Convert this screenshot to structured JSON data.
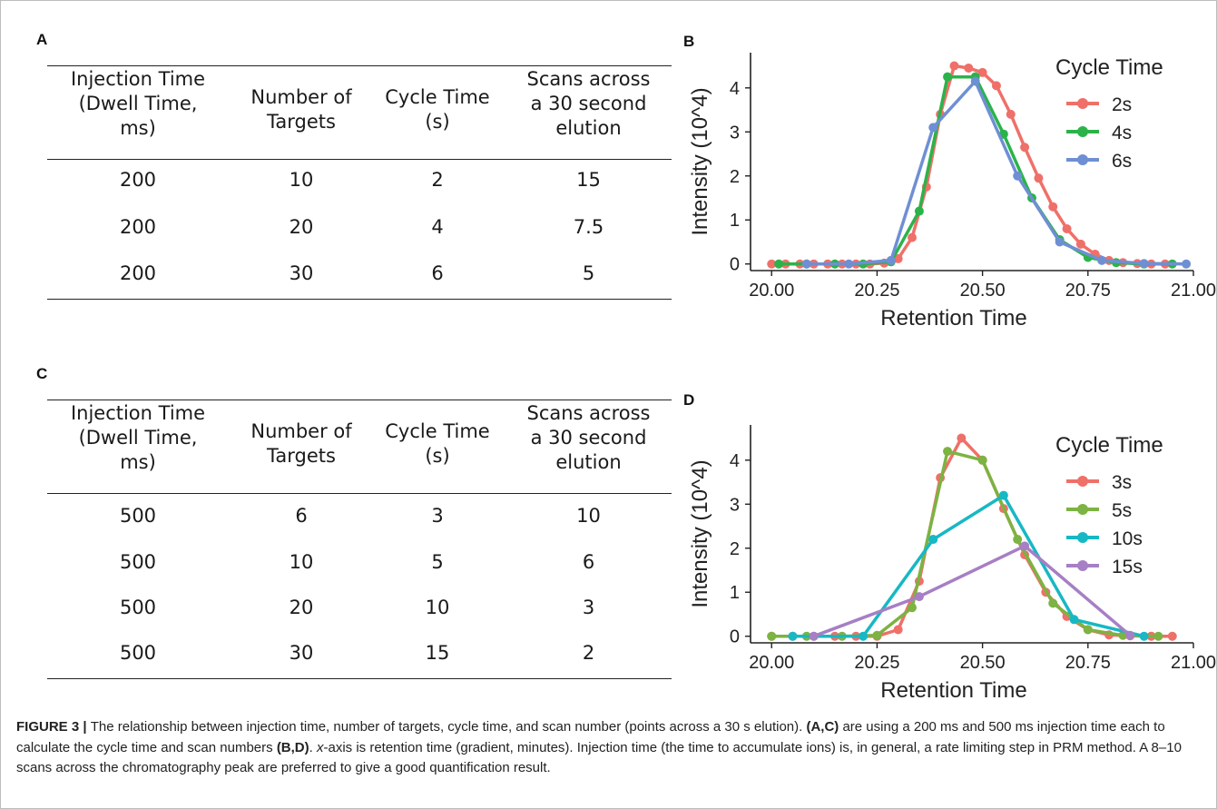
{
  "panels": {
    "A": {
      "letter": "A",
      "headers": [
        "Injection Time\n(Dwell Time,\nms)",
        "Number of\nTargets",
        "Cycle Time\n(s)",
        "Scans across\na 30 second\nelution"
      ],
      "rows": [
        [
          "200",
          "10",
          "2",
          "15"
        ],
        [
          "200",
          "20",
          "4",
          "7.5"
        ],
        [
          "200",
          "30",
          "6",
          "5"
        ]
      ]
    },
    "B": {
      "letter": "B"
    },
    "C": {
      "letter": "C",
      "headers": [
        "Injection Time\n(Dwell Time,\nms)",
        "Number of\nTargets",
        "Cycle Time\n(s)",
        "Scans across\na 30 second\nelution"
      ],
      "rows": [
        [
          "500",
          "6",
          "3",
          "10"
        ],
        [
          "500",
          "10",
          "5",
          "6"
        ],
        [
          "500",
          "20",
          "10",
          "3"
        ],
        [
          "500",
          "30",
          "15",
          "2"
        ]
      ]
    },
    "D": {
      "letter": "D"
    }
  },
  "chart_data": [
    {
      "panel": "B",
      "type": "line",
      "xlabel": "Retention Time",
      "ylabel": "Intensity (10^4)",
      "xlim": [
        19.95,
        21.0
      ],
      "ylim": [
        -0.15,
        4.8
      ],
      "xticks": [
        "20.00",
        "20.25",
        "20.50",
        "20.75",
        "21.00"
      ],
      "xtick_values": [
        20.0,
        20.25,
        20.5,
        20.75,
        21.0
      ],
      "yticks": [
        "0",
        "1",
        "2",
        "3",
        "4"
      ],
      "ytick_values": [
        0,
        1,
        2,
        3,
        4
      ],
      "legend_title": "Cycle Time",
      "legend_position": "top-right",
      "series": [
        {
          "name": "2s",
          "color": "#ef7069",
          "x": [
            20.0,
            20.033,
            20.067,
            20.1,
            20.133,
            20.167,
            20.2,
            20.233,
            20.267,
            20.3,
            20.333,
            20.367,
            20.4,
            20.433,
            20.467,
            20.5,
            20.533,
            20.567,
            20.6,
            20.633,
            20.667,
            20.7,
            20.733,
            20.767,
            20.8,
            20.833,
            20.867,
            20.9,
            20.933
          ],
          "y": [
            0,
            0,
            0,
            0,
            0,
            0,
            0,
            0,
            0.02,
            0.12,
            0.6,
            1.75,
            3.4,
            4.5,
            4.45,
            4.35,
            4.05,
            3.4,
            2.65,
            1.95,
            1.3,
            0.8,
            0.45,
            0.22,
            0.08,
            0.03,
            0.01,
            0,
            0
          ]
        },
        {
          "name": "4s",
          "color": "#2bb34a",
          "x": [
            20.017,
            20.083,
            20.15,
            20.217,
            20.283,
            20.35,
            20.417,
            20.483,
            20.55,
            20.617,
            20.683,
            20.75,
            20.817,
            20.883,
            20.95
          ],
          "y": [
            0,
            0,
            0,
            0,
            0.05,
            1.2,
            4.25,
            4.25,
            2.95,
            1.5,
            0.55,
            0.15,
            0.03,
            0,
            0
          ]
        },
        {
          "name": "6s",
          "color": "#6f8fd4",
          "x": [
            20.083,
            20.183,
            20.283,
            20.383,
            20.483,
            20.583,
            20.683,
            20.783,
            20.883,
            20.983
          ],
          "y": [
            0,
            0,
            0.08,
            3.1,
            4.15,
            2.0,
            0.5,
            0.08,
            0.01,
            0
          ]
        }
      ]
    },
    {
      "panel": "D",
      "type": "line",
      "xlabel": "Retention Time",
      "ylabel": "Intensity (10^4)",
      "xlim": [
        19.95,
        21.0
      ],
      "ylim": [
        -0.15,
        4.8
      ],
      "xticks": [
        "20.00",
        "20.25",
        "20.50",
        "20.75",
        "21.00"
      ],
      "xtick_values": [
        20.0,
        20.25,
        20.5,
        20.75,
        21.0
      ],
      "yticks": [
        "0",
        "1",
        "2",
        "3",
        "4"
      ],
      "ytick_values": [
        0,
        1,
        2,
        3,
        4
      ],
      "legend_title": "Cycle Time",
      "legend_position": "top-right",
      "series": [
        {
          "name": "3s",
          "color": "#ef7069",
          "x": [
            20.0,
            20.05,
            20.1,
            20.15,
            20.2,
            20.25,
            20.3,
            20.35,
            20.4,
            20.45,
            20.5,
            20.55,
            20.6,
            20.65,
            20.7,
            20.75,
            20.8,
            20.85,
            20.9,
            20.95
          ],
          "y": [
            0,
            0,
            0,
            0,
            0,
            0,
            0.15,
            1.25,
            3.6,
            4.5,
            4.0,
            2.9,
            1.85,
            1.0,
            0.45,
            0.15,
            0.03,
            0.01,
            0,
            0
          ]
        },
        {
          "name": "5s",
          "color": "#7cb342",
          "x": [
            20.0,
            20.083,
            20.167,
            20.25,
            20.333,
            20.417,
            20.5,
            20.583,
            20.667,
            20.75,
            20.833,
            20.917
          ],
          "y": [
            0,
            0,
            0,
            0.02,
            0.65,
            4.2,
            4.0,
            2.2,
            0.75,
            0.15,
            0.02,
            0
          ]
        },
        {
          "name": "10s",
          "color": "#17b8c4",
          "x": [
            20.05,
            20.217,
            20.383,
            20.55,
            20.717,
            20.883
          ],
          "y": [
            0,
            0,
            2.2,
            3.2,
            0.38,
            0
          ]
        },
        {
          "name": "15s",
          "color": "#a67fc4",
          "x": [
            20.1,
            20.35,
            20.6,
            20.85
          ],
          "y": [
            0,
            0.9,
            2.05,
            0.02
          ]
        }
      ]
    }
  ],
  "caption": {
    "label": "FIGURE 3",
    "separator": " | ",
    "part1": "The relationship between injection time, number of targets, cycle time, and scan number (points across a 30 s elution). ",
    "ref1": "(A,C)",
    "part2": " are using a 200 ms and 500 ms injection time each to calculate the cycle time and scan numbers ",
    "ref2": "(B,D)",
    "part3": ". ",
    "xaxis_italic": "x",
    "part4": "-axis is retention time (gradient, minutes). Injection time (the time to accumulate ions) is, in general, a rate limiting step in PRM method. A 8–10 scans across the chromatography peak are preferred to give a good quantification result."
  }
}
